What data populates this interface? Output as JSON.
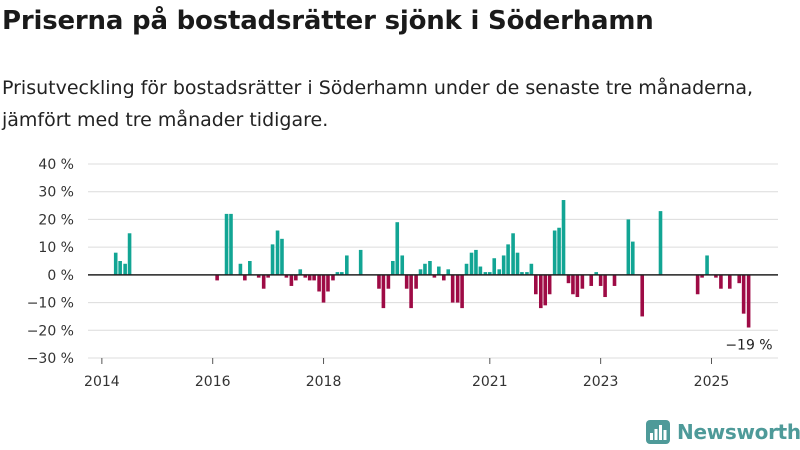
{
  "header": {
    "title": "Priserna på bostadsrätter sjönk i Söderhamn",
    "subtitle": "Prisutveckling för bostadsrätter i Söderhamn under de senaste tre månaderna, jämfört med tre månader tidigare."
  },
  "brand": {
    "name": "Newsworthy",
    "logo_icon": "bar-chart-icon"
  },
  "colors": {
    "positive": "#12a594",
    "negative": "#9e0b45",
    "grid": "#dcdcdc",
    "axis": "#222222",
    "brand": "#4e9a99"
  },
  "chart_data": {
    "type": "bar",
    "title": "Priserna på bostadsrätter sjönk i Söderhamn",
    "xlabel": "",
    "ylabel": "",
    "unit": "%",
    "ylim": [
      -30,
      40
    ],
    "yticks": [
      -30,
      -20,
      -10,
      0,
      10,
      20,
      30,
      40
    ],
    "ytick_labels": [
      "−30 %",
      "−20 %",
      "−10 %",
      "0 %",
      "10 %",
      "20 %",
      "30 %",
      "40 %"
    ],
    "xticks": [
      {
        "label": "2014",
        "t": 2014.0
      },
      {
        "label": "2016",
        "t": 2016.0
      },
      {
        "label": "2018",
        "t": 2018.0
      },
      {
        "label": "2021",
        "t": 2021.0
      },
      {
        "label": "2023",
        "t": 2023.0
      },
      {
        "label": "2025",
        "t": 2025.0
      }
    ],
    "grid": true,
    "annotations": [
      {
        "text": "−19 %",
        "t": 2025.67,
        "value": -19
      }
    ],
    "series": [
      {
        "name": "Prisutveckling",
        "points": [
          {
            "t": 2014.25,
            "value": 8
          },
          {
            "t": 2014.33,
            "value": 5
          },
          {
            "t": 2014.42,
            "value": 4
          },
          {
            "t": 2014.5,
            "value": 15
          },
          {
            "t": 2016.08,
            "value": -2
          },
          {
            "t": 2016.25,
            "value": 22
          },
          {
            "t": 2016.33,
            "value": 22
          },
          {
            "t": 2016.5,
            "value": 4
          },
          {
            "t": 2016.58,
            "value": -2
          },
          {
            "t": 2016.67,
            "value": 5
          },
          {
            "t": 2016.83,
            "value": -1
          },
          {
            "t": 2016.92,
            "value": -5
          },
          {
            "t": 2017.0,
            "value": -1
          },
          {
            "t": 2017.08,
            "value": 11
          },
          {
            "t": 2017.17,
            "value": 16
          },
          {
            "t": 2017.25,
            "value": 13
          },
          {
            "t": 2017.33,
            "value": -1
          },
          {
            "t": 2017.42,
            "value": -4
          },
          {
            "t": 2017.5,
            "value": -2
          },
          {
            "t": 2017.58,
            "value": 2
          },
          {
            "t": 2017.67,
            "value": -1
          },
          {
            "t": 2017.75,
            "value": -2
          },
          {
            "t": 2017.83,
            "value": -2
          },
          {
            "t": 2017.92,
            "value": -6
          },
          {
            "t": 2018.0,
            "value": -10
          },
          {
            "t": 2018.08,
            "value": -6
          },
          {
            "t": 2018.17,
            "value": -2
          },
          {
            "t": 2018.25,
            "value": 1
          },
          {
            "t": 2018.33,
            "value": 1
          },
          {
            "t": 2018.42,
            "value": 7
          },
          {
            "t": 2018.67,
            "value": 9
          },
          {
            "t": 2019.0,
            "value": -5
          },
          {
            "t": 2019.08,
            "value": -12
          },
          {
            "t": 2019.17,
            "value": -5
          },
          {
            "t": 2019.25,
            "value": 5
          },
          {
            "t": 2019.33,
            "value": 19
          },
          {
            "t": 2019.42,
            "value": 7
          },
          {
            "t": 2019.5,
            "value": -5
          },
          {
            "t": 2019.58,
            "value": -12
          },
          {
            "t": 2019.67,
            "value": -5
          },
          {
            "t": 2019.75,
            "value": 2
          },
          {
            "t": 2019.83,
            "value": 4
          },
          {
            "t": 2019.92,
            "value": 5
          },
          {
            "t": 2020.0,
            "value": -1
          },
          {
            "t": 2020.08,
            "value": 3
          },
          {
            "t": 2020.17,
            "value": -2
          },
          {
            "t": 2020.25,
            "value": 2
          },
          {
            "t": 2020.33,
            "value": -10
          },
          {
            "t": 2020.42,
            "value": -10
          },
          {
            "t": 2020.5,
            "value": -12
          },
          {
            "t": 2020.58,
            "value": 4
          },
          {
            "t": 2020.67,
            "value": 8
          },
          {
            "t": 2020.75,
            "value": 9
          },
          {
            "t": 2020.83,
            "value": 3
          },
          {
            "t": 2020.92,
            "value": 1
          },
          {
            "t": 2021.0,
            "value": 1
          },
          {
            "t": 2021.08,
            "value": 6
          },
          {
            "t": 2021.17,
            "value": 2
          },
          {
            "t": 2021.25,
            "value": 7
          },
          {
            "t": 2021.33,
            "value": 11
          },
          {
            "t": 2021.42,
            "value": 15
          },
          {
            "t": 2021.5,
            "value": 8
          },
          {
            "t": 2021.58,
            "value": 1
          },
          {
            "t": 2021.67,
            "value": 1
          },
          {
            "t": 2021.75,
            "value": 4
          },
          {
            "t": 2021.83,
            "value": -7
          },
          {
            "t": 2021.92,
            "value": -12
          },
          {
            "t": 2022.0,
            "value": -11
          },
          {
            "t": 2022.08,
            "value": -7
          },
          {
            "t": 2022.17,
            "value": 16
          },
          {
            "t": 2022.25,
            "value": 17
          },
          {
            "t": 2022.33,
            "value": 27
          },
          {
            "t": 2022.42,
            "value": -3
          },
          {
            "t": 2022.5,
            "value": -7
          },
          {
            "t": 2022.58,
            "value": -8
          },
          {
            "t": 2022.67,
            "value": -5
          },
          {
            "t": 2022.83,
            "value": -4
          },
          {
            "t": 2022.92,
            "value": 1
          },
          {
            "t": 2023.0,
            "value": -4
          },
          {
            "t": 2023.08,
            "value": -8
          },
          {
            "t": 2023.25,
            "value": -4
          },
          {
            "t": 2023.5,
            "value": 20
          },
          {
            "t": 2023.58,
            "value": 12
          },
          {
            "t": 2023.75,
            "value": -15
          },
          {
            "t": 2024.08,
            "value": 23
          },
          {
            "t": 2024.75,
            "value": -7
          },
          {
            "t": 2024.83,
            "value": -1
          },
          {
            "t": 2024.92,
            "value": 7
          },
          {
            "t": 2025.08,
            "value": -1
          },
          {
            "t": 2025.17,
            "value": -5
          },
          {
            "t": 2025.33,
            "value": -5
          },
          {
            "t": 2025.5,
            "value": -3
          },
          {
            "t": 2025.58,
            "value": -14
          },
          {
            "t": 2025.67,
            "value": -19
          }
        ]
      }
    ]
  }
}
